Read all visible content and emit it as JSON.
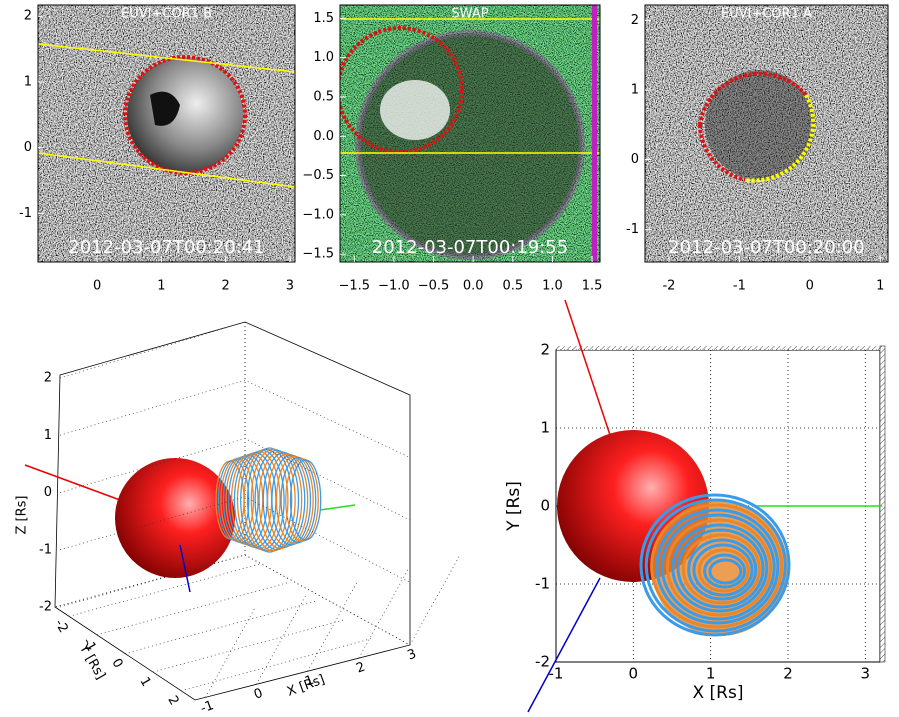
{
  "chart_data": [
    {
      "type": "image",
      "title": "EUVI+COR1 B",
      "annotation": "2012-03-07T00:20:41",
      "xlim": [
        -0.92,
        3.08
      ],
      "xticks": [
        0,
        1,
        2,
        3
      ],
      "ylim": [
        -1.74,
        2.17
      ],
      "yticks": [
        -1,
        0,
        1,
        2
      ]
    },
    {
      "type": "image",
      "title": "SWAP",
      "annotation": "2012-03-07T00:19:55",
      "xlim": [
        -1.68,
        1.6
      ],
      "xticks": [
        {
          "value": -1.5,
          "label": "−1.5"
        },
        {
          "value": -1,
          "label": "−1.0"
        },
        {
          "value": -0.5,
          "label": "−0.5"
        },
        {
          "value": 0,
          "label": "0.0"
        },
        {
          "value": 0.5,
          "label": "0.5"
        },
        {
          "value": 1,
          "label": "1.0"
        },
        {
          "value": 1.5,
          "label": "1.5"
        }
      ],
      "ylim": [
        -1.6,
        1.67
      ],
      "yticks": [
        {
          "value": -1.5,
          "label": "−1.5"
        },
        {
          "value": -1,
          "label": "−1.0"
        },
        {
          "value": -0.5,
          "label": "−0.5"
        },
        {
          "value": 0,
          "label": "0.0"
        },
        {
          "value": 0.5,
          "label": "0.5"
        },
        {
          "value": 1,
          "label": "1.0"
        },
        {
          "value": 1.5,
          "label": "1.5"
        }
      ]
    },
    {
      "type": "image",
      "title": "EUVI+COR1 A",
      "annotation": "2012-03-07T00:20:00",
      "xlim": [
        -2.34,
        1.11
      ],
      "xticks": [
        -2,
        -1,
        0,
        1
      ],
      "ylim": [
        -1.47,
        2.22
      ],
      "yticks": [
        -1,
        0,
        1,
        2
      ]
    },
    {
      "type": "surface3d",
      "xlabel": "X [Rs]",
      "ylabel": "Y [Rs]",
      "zlabel": "Z [Rs]",
      "xlim": [
        -1.2,
        3
      ],
      "xticks": [
        -1,
        0,
        1,
        2,
        3
      ],
      "ylim": [
        -2.5,
        2.5
      ],
      "yticks": [
        -2,
        -1,
        0,
        1,
        2
      ],
      "zlim": [
        -2,
        2
      ],
      "zticks": [
        -2,
        -1,
        0,
        1,
        2
      ],
      "grid": true
    },
    {
      "type": "projection",
      "xlabel": "X [Rs]",
      "ylabel": "Y [Rs]",
      "xlim": [
        -1,
        3.19
      ],
      "xticks": [
        -1,
        0,
        1,
        2,
        3
      ],
      "ylim": [
        -2,
        2
      ],
      "yticks": [
        -2,
        -1,
        0,
        1,
        2
      ],
      "grid": true
    }
  ]
}
